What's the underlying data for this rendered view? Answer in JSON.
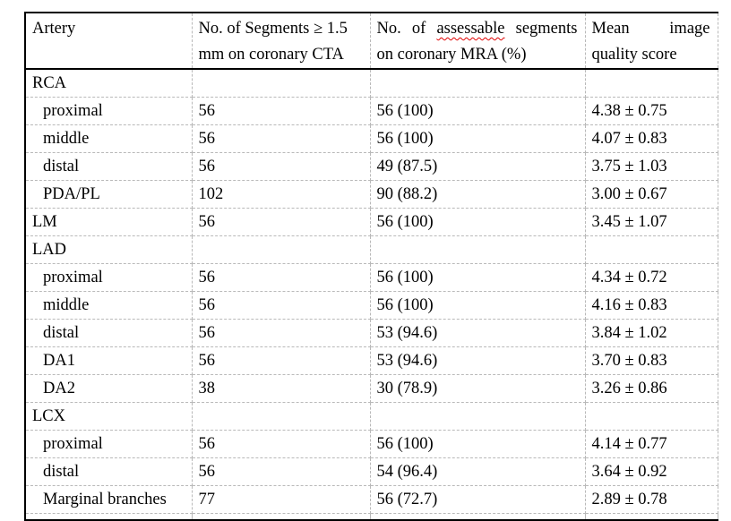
{
  "colors": {
    "border": "#000000",
    "gridline": "#b9b9b9",
    "squiggle": "#e00000",
    "text": "#000000",
    "background": "#ffffff"
  },
  "header": {
    "artery": "Artery",
    "cta_line1": "No. of Segments ≥ 1.5",
    "cta_line2": "mm on coronary CTA",
    "mra_prefix": "No. of ",
    "mra_misspelled": "assessable",
    "mra_suffix": " segments",
    "mra_line2": "on coronary MRA (%)",
    "quality_line1": "Mean image",
    "quality_line2": "quality score"
  },
  "rows": [
    {
      "label": "RCA",
      "level": "section",
      "cta": "",
      "mra": "",
      "score": ""
    },
    {
      "label": "proximal",
      "level": "sub",
      "cta": "56",
      "mra": "56 (100)",
      "score": "4.38 ± 0.75"
    },
    {
      "label": "middle",
      "level": "sub",
      "cta": "56",
      "mra": "56 (100)",
      "score": "4.07 ± 0.83"
    },
    {
      "label": "distal",
      "level": "sub",
      "cta": "56",
      "mra": "49 (87.5)",
      "score": "3.75 ± 1.03"
    },
    {
      "label": "PDA/PL",
      "level": "sub",
      "cta": "102",
      "mra": "90 (88.2)",
      "score": "3.00 ± 0.67"
    },
    {
      "label": "LM",
      "level": "main",
      "cta": "56",
      "mra": "56 (100)",
      "score": "3.45 ± 1.07"
    },
    {
      "label": "LAD",
      "level": "section",
      "cta": "",
      "mra": "",
      "score": ""
    },
    {
      "label": "proximal",
      "level": "sub",
      "cta": "56",
      "mra": "56 (100)",
      "score": "4.34 ± 0.72"
    },
    {
      "label": "middle",
      "level": "sub",
      "cta": "56",
      "mra": "56 (100)",
      "score": "4.16 ± 0.83"
    },
    {
      "label": "distal",
      "level": "sub",
      "cta": "56",
      "mra": "53 (94.6)",
      "score": "3.84 ± 1.02"
    },
    {
      "label": "DA1",
      "level": "sub",
      "cta": "56",
      "mra": "53 (94.6)",
      "score": "3.70 ± 0.83"
    },
    {
      "label": "DA2",
      "level": "sub",
      "cta": "38",
      "mra": "30 (78.9)",
      "score": "3.26 ± 0.86"
    },
    {
      "label": "LCX",
      "level": "section",
      "cta": "",
      "mra": "",
      "score": ""
    },
    {
      "label": "proximal",
      "level": "sub",
      "cta": "56",
      "mra": "56 (100)",
      "score": "4.14 ± 0.77"
    },
    {
      "label": "distal",
      "level": "sub",
      "cta": "56",
      "mra": "54 (96.4)",
      "score": "3.64 ± 0.92"
    },
    {
      "label": "Marginal branches",
      "level": "sub",
      "cta": "77",
      "mra": "56 (72.7)",
      "score": "2.89 ± 0.78"
    }
  ]
}
